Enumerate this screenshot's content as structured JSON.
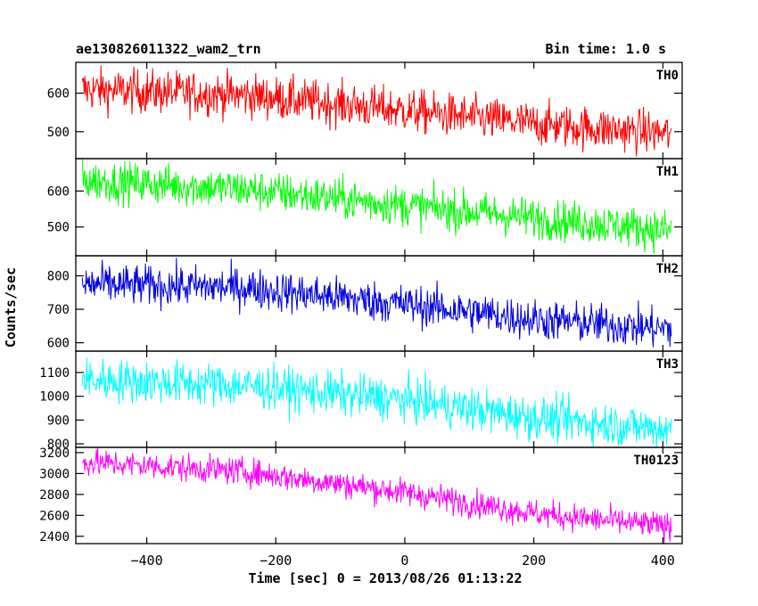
{
  "header": {
    "left": "ae130826011322_wam2_trn",
    "right": "Bin time: 1.0 s"
  },
  "chart_data": {
    "type": "line",
    "xlabel": "Time [sec] 0 = 2013/08/26 01:13:22",
    "ylabel": "Counts/sec",
    "xlim": [
      -510,
      430
    ],
    "x_range": [
      -500,
      413
    ],
    "x_ticks": [
      -400,
      -200,
      0,
      200,
      400
    ],
    "x_tick_labels": [
      "−400",
      "−200",
      "0",
      "200",
      "400"
    ],
    "panels": [
      {
        "name": "TH0",
        "color": "#ff0000",
        "ylim": [
          430,
          680
        ],
        "y_ticks": [
          500,
          600
        ],
        "y_tick_labels": [
          "500",
          "600"
        ],
        "trend": [
          [
            -500,
            610
          ],
          [
            -250,
            595
          ],
          [
            0,
            555
          ],
          [
            200,
            520
          ],
          [
            413,
            495
          ]
        ],
        "noise": 28
      },
      {
        "name": "TH1",
        "color": "#00ff00",
        "ylim": [
          420,
          690
        ],
        "y_ticks": [
          500,
          600
        ],
        "y_tick_labels": [
          "500",
          "600"
        ],
        "trend": [
          [
            -500,
            630
          ],
          [
            -250,
            605
          ],
          [
            0,
            560
          ],
          [
            200,
            525
          ],
          [
            413,
            490
          ]
        ],
        "noise": 28
      },
      {
        "name": "TH2",
        "color": "#0000dd",
        "ylim": [
          575,
          860
        ],
        "y_ticks": [
          600,
          700,
          800
        ],
        "y_tick_labels": [
          "600",
          "700",
          "800"
        ],
        "trend": [
          [
            -500,
            775
          ],
          [
            -250,
            765
          ],
          [
            0,
            715
          ],
          [
            200,
            670
          ],
          [
            413,
            640
          ]
        ],
        "noise": 30
      },
      {
        "name": "TH3",
        "color": "#00ffff",
        "ylim": [
          785,
          1190
        ],
        "y_ticks": [
          800,
          900,
          1000,
          1100
        ],
        "y_tick_labels": [
          "800",
          "900",
          "1000",
          "1100"
        ],
        "trend": [
          [
            -500,
            1070
          ],
          [
            -250,
            1045
          ],
          [
            0,
            985
          ],
          [
            200,
            910
          ],
          [
            413,
            860
          ]
        ],
        "noise": 45
      },
      {
        "name": "TH0123",
        "color": "#ff00ff",
        "ylim": [
          2330,
          3250
        ],
        "y_ticks": [
          2400,
          2600,
          2800,
          3000,
          3200
        ],
        "y_tick_labels": [
          "2400",
          "2600",
          "2800",
          "3000",
          "3200"
        ],
        "trend": [
          [
            -500,
            3110
          ],
          [
            -250,
            3020
          ],
          [
            0,
            2820
          ],
          [
            200,
            2620
          ],
          [
            413,
            2490
          ]
        ],
        "noise": 65
      }
    ]
  }
}
